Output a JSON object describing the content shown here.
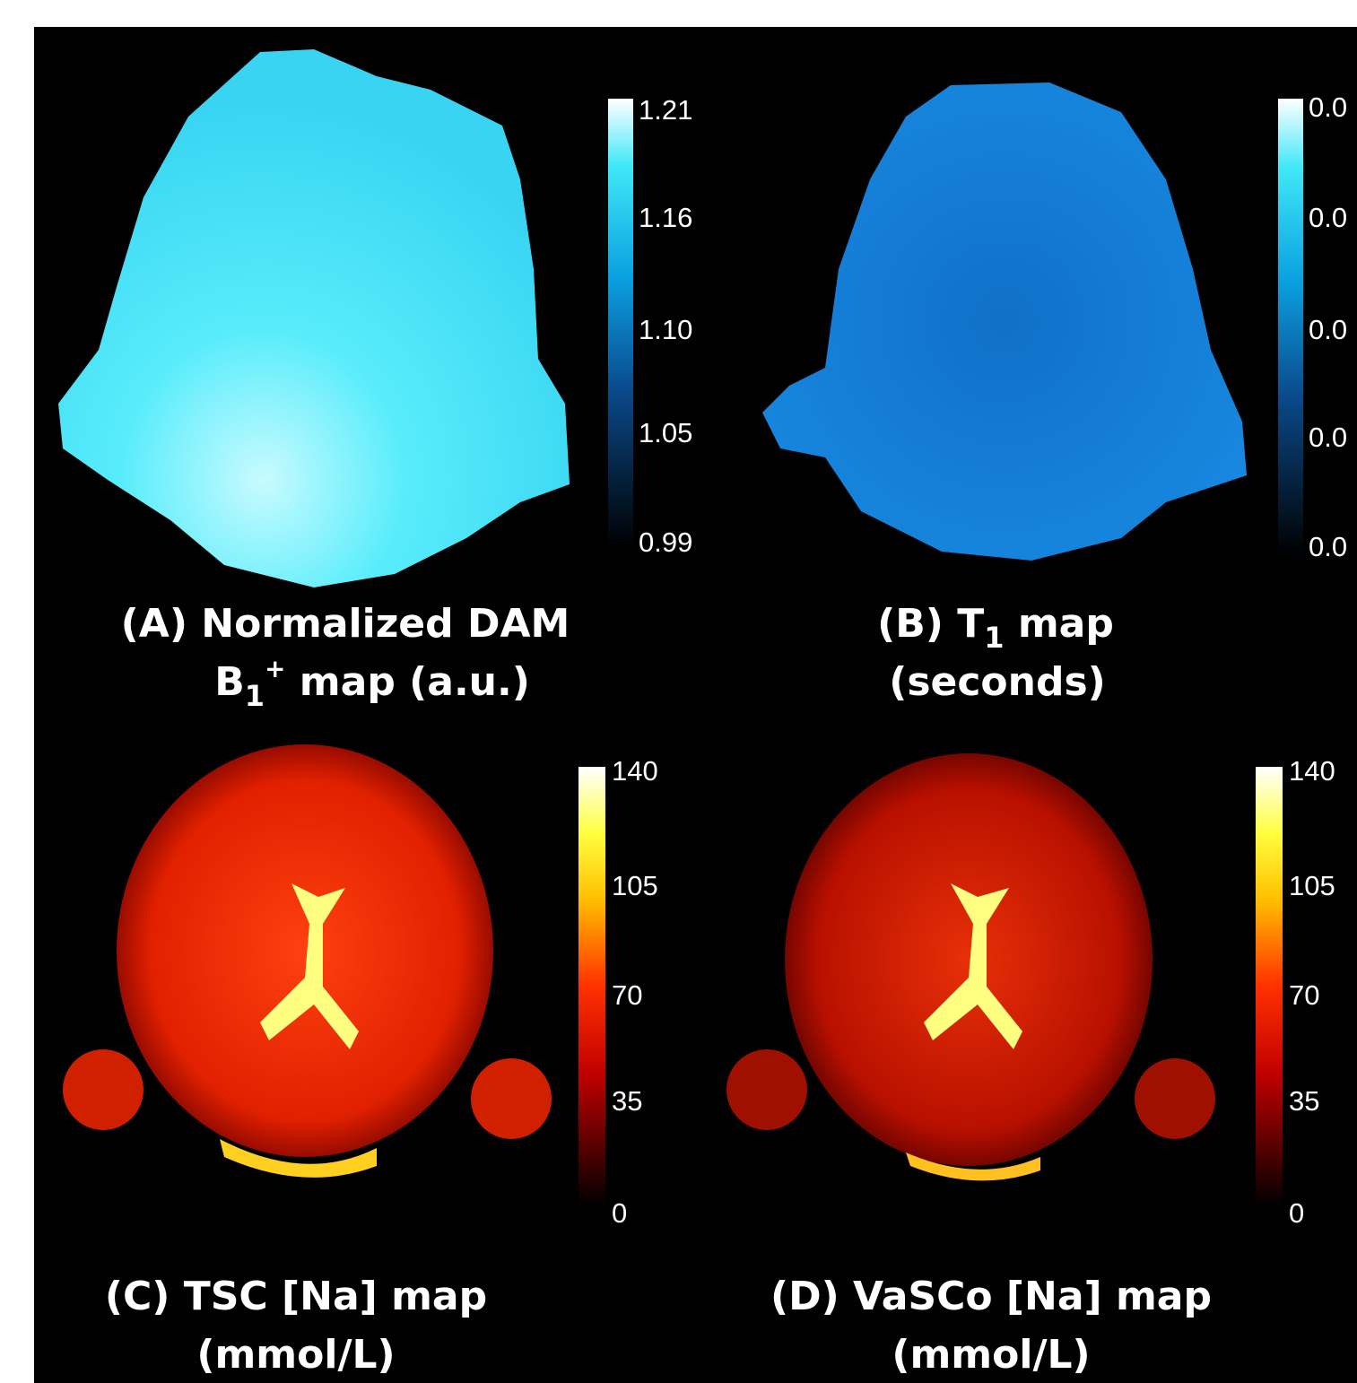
{
  "panels": [
    {
      "caption": {
        "line1": "(A) Normalized DAM",
        "line2": [
          "B",
          "1",
          "+",
          " map (a.u.)"
        ]
      },
      "colorbar_ticks": [
        "1.21",
        "1.16",
        "1.10",
        "1.05",
        "0.99"
      ]
    },
    {
      "caption": {
        "line1": [
          "(B) T",
          "1",
          " map"
        ],
        "line2": "(seconds)"
      },
      "colorbar_ticks": [
        "0.0",
        "0.0",
        "0.0",
        "0.0",
        "0.0"
      ]
    },
    {
      "caption": {
        "line1": "(C) TSC [Na] map",
        "line2": "(mmol/L)"
      },
      "colorbar_ticks": [
        "140",
        "105",
        "70",
        "35",
        "0"
      ]
    },
    {
      "caption": {
        "line1": "(D) VaSCo [Na] map",
        "line2": "(mmol/L)"
      },
      "colorbar_ticks": [
        "140",
        "105",
        "70",
        "35",
        "0"
      ]
    }
  ]
}
